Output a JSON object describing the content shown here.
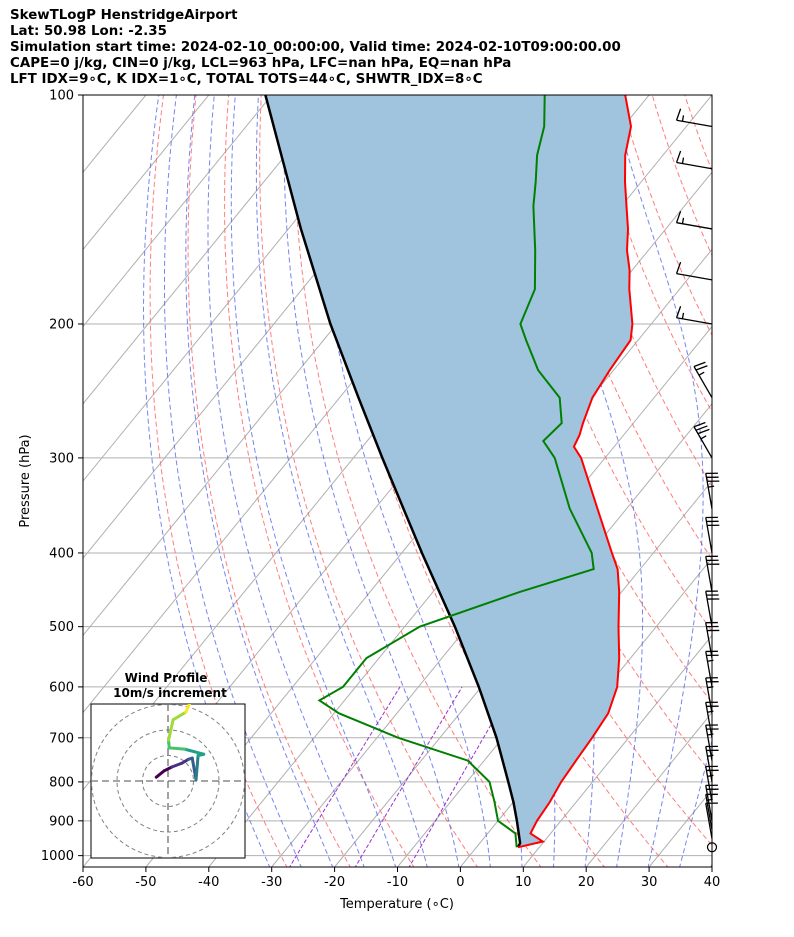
{
  "header": {
    "line1": "SkewTLogP HenstridgeAirport",
    "line2": "Lat: 50.98   Lon: -2.35",
    "line3": "Simulation start time: 2024-02-10_00:00:00, Valid time: 2024-02-10T09:00:00.00",
    "line4": "CAPE=0 j/kg, CIN=0 j/kg, LCL=963 hPa, LFC=nan hPa, EQ=nan hPa",
    "line5": "LFT IDX=9∘C, K IDX=1∘C, TOTAL TOTS=44∘C, SHWTR_IDX=8∘C"
  },
  "colors": {
    "temperature": "#ff0000",
    "dewpoint": "#008000",
    "parcel": "#000000",
    "cape_fill": "#a0c4de",
    "dry_adiabat": "#ff6666",
    "moist_adiabat": "#5566ee",
    "mixing_ratio": "#9933cc",
    "isotherm": "#b0b0b0",
    "isobar": "#b0b0b0"
  },
  "chart_data": {
    "type": "skewt-logp",
    "xlabel": "Temperature (∘C)",
    "ylabel": "Pressure (hPa)",
    "xlim": [
      -60,
      40
    ],
    "ylim": [
      1035,
      100
    ],
    "x_ticks": [
      -60,
      -50,
      -40,
      -30,
      -20,
      -10,
      0,
      10,
      20,
      30,
      40
    ],
    "y_ticks": [
      100,
      200,
      300,
      400,
      500,
      600,
      700,
      800,
      900,
      1000
    ],
    "grid": true,
    "temperature_profile": [
      {
        "p": 975,
        "t": 6.6
      },
      {
        "p": 958,
        "t": 9.8
      },
      {
        "p": 935,
        "t": 6.8
      },
      {
        "p": 900,
        "t": 6.2
      },
      {
        "p": 850,
        "t": 5.8
      },
      {
        "p": 800,
        "t": 5.0
      },
      {
        "p": 750,
        "t": 4.6
      },
      {
        "p": 700,
        "t": 4.2
      },
      {
        "p": 650,
        "t": 3.6
      },
      {
        "p": 600,
        "t": 1.6
      },
      {
        "p": 550,
        "t": -1.8
      },
      {
        "p": 500,
        "t": -6.0
      },
      {
        "p": 450,
        "t": -10.4
      },
      {
        "p": 420,
        "t": -13.6
      },
      {
        "p": 400,
        "t": -16.6
      },
      {
        "p": 350,
        "t": -24.6
      },
      {
        "p": 300,
        "t": -33.8
      },
      {
        "p": 290,
        "t": -36.4
      },
      {
        "p": 280,
        "t": -37.0
      },
      {
        "p": 270,
        "t": -38.0
      },
      {
        "p": 250,
        "t": -39.8
      },
      {
        "p": 230,
        "t": -40.6
      },
      {
        "p": 210,
        "t": -41.2
      },
      {
        "p": 200,
        "t": -43.0
      },
      {
        "p": 180,
        "t": -48.0
      },
      {
        "p": 170,
        "t": -50.4
      },
      {
        "p": 160,
        "t": -53.4
      },
      {
        "p": 150,
        "t": -56.0
      },
      {
        "p": 140,
        "t": -59.2
      },
      {
        "p": 130,
        "t": -62.6
      },
      {
        "p": 120,
        "t": -66.0
      },
      {
        "p": 110,
        "t": -68.8
      },
      {
        "p": 100,
        "t": -73.8
      }
    ],
    "dewpoint_profile": [
      {
        "p": 975,
        "t": 6.4
      },
      {
        "p": 935,
        "t": 4.4
      },
      {
        "p": 900,
        "t": 0.0
      },
      {
        "p": 850,
        "t": -3.0
      },
      {
        "p": 800,
        "t": -6.4
      },
      {
        "p": 750,
        "t": -12.6
      },
      {
        "p": 700,
        "t": -26.6
      },
      {
        "p": 650,
        "t": -39.2
      },
      {
        "p": 625,
        "t": -44.0
      },
      {
        "p": 600,
        "t": -42.0
      },
      {
        "p": 550,
        "t": -42.0
      },
      {
        "p": 500,
        "t": -37.6
      },
      {
        "p": 450,
        "t": -26.2
      },
      {
        "p": 420,
        "t": -17.4
      },
      {
        "p": 400,
        "t": -19.8
      },
      {
        "p": 350,
        "t": -29.0
      },
      {
        "p": 300,
        "t": -38.0
      },
      {
        "p": 285,
        "t": -42.0
      },
      {
        "p": 270,
        "t": -41.4
      },
      {
        "p": 250,
        "t": -45.0
      },
      {
        "p": 230,
        "t": -52.0
      },
      {
        "p": 210,
        "t": -57.8
      },
      {
        "p": 200,
        "t": -60.8
      },
      {
        "p": 180,
        "t": -63.0
      },
      {
        "p": 160,
        "t": -68.0
      },
      {
        "p": 140,
        "t": -74.0
      },
      {
        "p": 130,
        "t": -76.8
      },
      {
        "p": 120,
        "t": -80.0
      },
      {
        "p": 110,
        "t": -82.6
      },
      {
        "p": 100,
        "t": -86.6
      }
    ],
    "parcel_profile": [
      {
        "p": 975,
        "t": 6.6
      },
      {
        "p": 963,
        "t": 6.4
      },
      {
        "p": 900,
        "t": 3.0
      },
      {
        "p": 850,
        "t": 0.0
      },
      {
        "p": 800,
        "t": -3.4
      },
      {
        "p": 700,
        "t": -11.0
      },
      {
        "p": 600,
        "t": -20.4
      },
      {
        "p": 500,
        "t": -32.0
      },
      {
        "p": 400,
        "t": -46.8
      },
      {
        "p": 300,
        "t": -65.4
      },
      {
        "p": 250,
        "t": -77.0
      },
      {
        "p": 200,
        "t": -91.0
      },
      {
        "p": 150,
        "t": -108.0
      },
      {
        "p": 100,
        "t": -131.0
      }
    ],
    "wind_barbs": [
      {
        "p": 975,
        "speed_kt": 0
      },
      {
        "p": 950,
        "speed_kt": 10
      },
      {
        "p": 925,
        "speed_kt": 15
      },
      {
        "p": 900,
        "speed_kt": 20
      },
      {
        "p": 850,
        "speed_kt": 25
      },
      {
        "p": 800,
        "speed_kt": 25
      },
      {
        "p": 750,
        "speed_kt": 25
      },
      {
        "p": 700,
        "speed_kt": 25
      },
      {
        "p": 650,
        "speed_kt": 25
      },
      {
        "p": 600,
        "speed_kt": 25
      },
      {
        "p": 550,
        "speed_kt": 30
      },
      {
        "p": 500,
        "speed_kt": 30
      },
      {
        "p": 450,
        "speed_kt": 30
      },
      {
        "p": 400,
        "speed_kt": 30
      },
      {
        "p": 350,
        "speed_kt": 35
      },
      {
        "p": 300,
        "speed_kt": 35
      },
      {
        "p": 250,
        "speed_kt": 25
      },
      {
        "p": 200,
        "speed_kt": 15
      },
      {
        "p": 175,
        "speed_kt": 10
      },
      {
        "p": 150,
        "speed_kt": 15
      },
      {
        "p": 125,
        "speed_kt": 15
      },
      {
        "p": 110,
        "speed_kt": 15
      }
    ],
    "hodograph": {
      "title": "Wind Profile",
      "subtitle": "10m/s increment",
      "rings_ms": [
        10,
        20,
        30
      ],
      "points": [
        {
          "u": -4.6,
          "v": 1.5
        },
        {
          "u": -1.5,
          "v": 4.0
        },
        {
          "u": 1.5,
          "v": 5.5
        },
        {
          "u": 5.5,
          "v": 7.0
        },
        {
          "u": 8.0,
          "v": 8.5
        },
        {
          "u": 9.5,
          "v": 9.0
        },
        {
          "u": 11.0,
          "v": 0.5
        },
        {
          "u": 11.8,
          "v": 10.0
        },
        {
          "u": 14.0,
          "v": 10.5
        },
        {
          "u": 6.5,
          "v": 12.5
        },
        {
          "u": 0.5,
          "v": 13.0
        },
        {
          "u": 0.2,
          "v": 16.0
        },
        {
          "u": 2.0,
          "v": 24.0
        },
        {
          "u": 7.0,
          "v": 27.0
        },
        {
          "u": 10.0,
          "v": 34.0
        }
      ]
    }
  }
}
